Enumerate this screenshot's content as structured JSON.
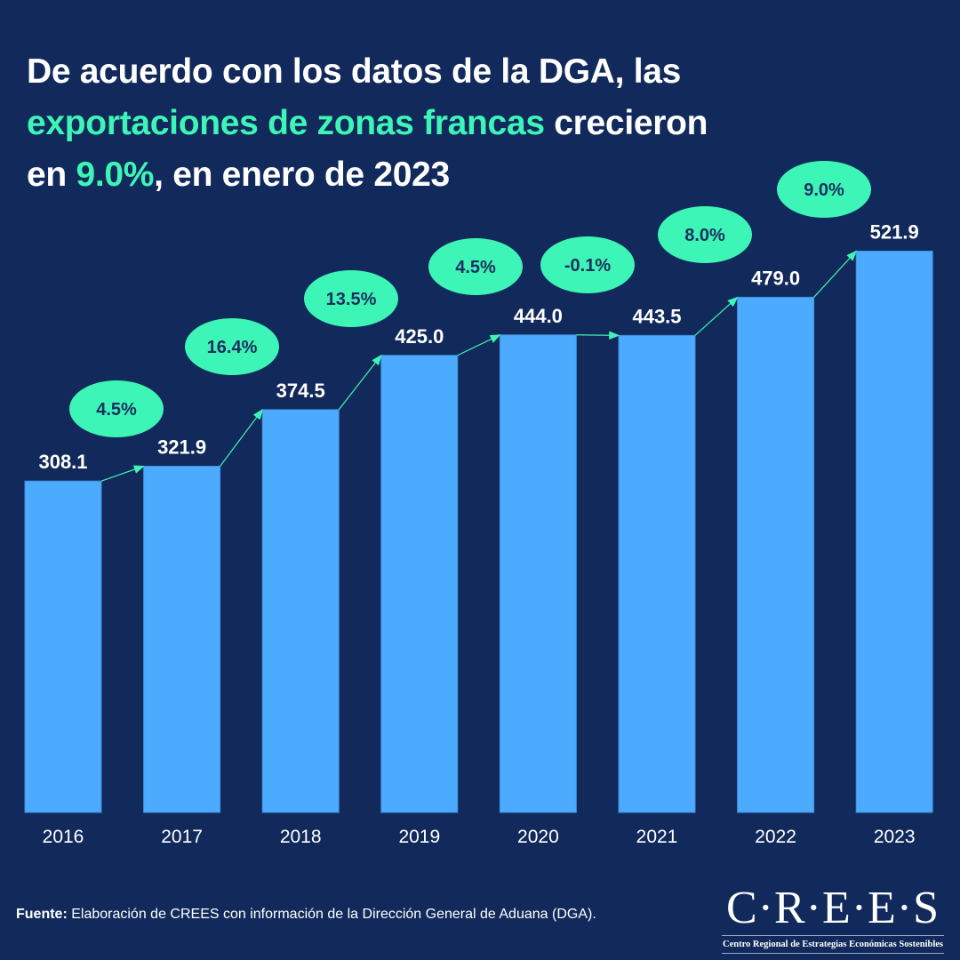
{
  "title": {
    "line1": "De acuerdo con los datos de la DGA, las",
    "highlight1": "exportaciones de zonas francas",
    "line2_rest": " crecieron",
    "line3_pre": "en ",
    "highlight2": "9.0%",
    "line3_rest": ", en enero de 2023"
  },
  "colors": {
    "background": "#122a5b",
    "bar": "#4dabff",
    "accent": "#3df5b6",
    "bubble_text": "#1b2f5e"
  },
  "chart_data": {
    "type": "bar",
    "categories": [
      "2016",
      "2017",
      "2018",
      "2019",
      "2020",
      "2021",
      "2022",
      "2023"
    ],
    "values": [
      308.1,
      321.9,
      374.5,
      425.0,
      444.0,
      443.5,
      479.0,
      521.9
    ],
    "value_labels": [
      "308.1",
      "321.9",
      "374.5",
      "425.0",
      "444.0",
      "443.5",
      "479.0",
      "521.9"
    ],
    "growth_labels": [
      "4.5%",
      "16.4%",
      "13.5%",
      "4.5%",
      "-0.1%",
      "8.0%",
      "9.0%"
    ],
    "ylim": [
      0,
      540
    ],
    "grid": false,
    "legend": "none",
    "title": "",
    "xlabel": "",
    "ylabel": ""
  },
  "footer": {
    "source_label": "Fuente:",
    "source_text": " Elaboración de CREES con información de la Dirección General de Aduana (DGA)."
  },
  "logo": {
    "name": "C·R·E·E·S",
    "subtitle": "Centro Regional de Estrategias Económicas Sostenibles"
  }
}
